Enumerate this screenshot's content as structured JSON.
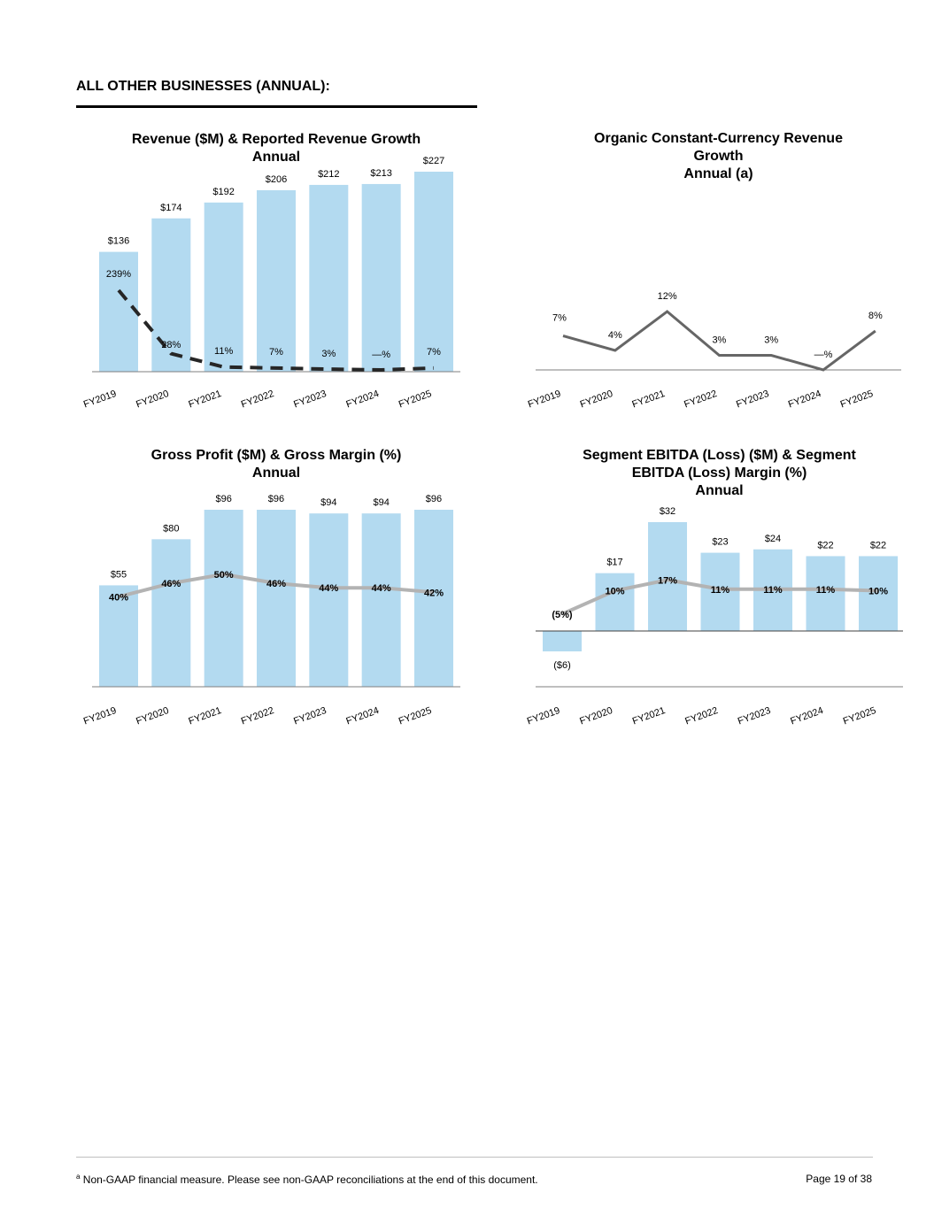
{
  "section_title": "ALL OTHER BUSINESSES (ANNUAL):",
  "colors": {
    "bar": "#b3daf0",
    "line_dark": "#666666",
    "line_light": "#b3b3b3",
    "dashed": "#262626",
    "axis": "#7f7f7f"
  },
  "chart_data": [
    {
      "id": "revenue",
      "type": "bar",
      "title": [
        "Revenue ($M) & Reported Revenue Growth",
        "Annual"
      ],
      "categories": [
        "FY2019",
        "FY2020",
        "FY2021",
        "FY2022",
        "FY2023",
        "FY2024",
        "FY2025"
      ],
      "ylim": [
        0,
        240
      ],
      "series": [
        {
          "values": [
            136,
            174,
            192,
            206,
            212,
            213,
            227
          ],
          "labels": [
            "$136",
            "$174",
            "$192",
            "$206",
            "$212",
            "$213",
            "$227"
          ]
        }
      ],
      "overlay": {
        "style": "dashed",
        "values": [
          239,
          28,
          11,
          7,
          3,
          0,
          7
        ],
        "labels": [
          "239%",
          "28%",
          "11%",
          "7%",
          "3%",
          "—%",
          "7%"
        ],
        "ylim": [
          0,
          300
        ]
      }
    },
    {
      "id": "organic",
      "type": "line",
      "title": [
        "Organic Constant-Currency Revenue",
        "Growth",
        "Annual (a)"
      ],
      "categories": [
        "FY2019",
        "FY2020",
        "FY2021",
        "FY2022",
        "FY2023",
        "FY2024",
        "FY2025"
      ],
      "ylim": [
        0,
        16
      ],
      "series": [
        {
          "values": [
            7,
            4,
            12,
            3,
            3,
            0,
            8
          ],
          "labels": [
            "7%",
            "4%",
            "12%",
            "3%",
            "3%",
            "—%",
            "8%"
          ]
        }
      ]
    },
    {
      "id": "gross_profit",
      "type": "bar",
      "title": [
        "Gross Profit ($M) & Gross Margin (%)",
        "Annual"
      ],
      "categories": [
        "FY2019",
        "FY2020",
        "FY2021",
        "FY2022",
        "FY2023",
        "FY2024",
        "FY2025"
      ],
      "ylim": [
        0,
        100
      ],
      "series": [
        {
          "values": [
            55,
            80,
            96,
            96,
            94,
            94,
            96
          ],
          "labels": [
            "$55",
            "$80",
            "$96",
            "$96",
            "$94",
            "$94",
            "$96"
          ]
        }
      ],
      "overlay": {
        "style": "solid-light",
        "values": [
          40,
          46,
          50,
          46,
          44,
          44,
          42
        ],
        "labels": [
          "40%",
          "46%",
          "50%",
          "46%",
          "44%",
          "44%",
          "42%"
        ],
        "ylim": [
          0,
          85
        ]
      }
    },
    {
      "id": "ebitda",
      "type": "bar",
      "title": [
        "Segment EBITDA (Loss) ($M) & Segment",
        "EBITDA (Loss) Margin (%)",
        "Annual"
      ],
      "categories": [
        "FY2019",
        "FY2020",
        "FY2021",
        "FY2022",
        "FY2023",
        "FY2024",
        "FY2025"
      ],
      "ylim": [
        -16,
        32
      ],
      "series": [
        {
          "values": [
            -6,
            17,
            32,
            23,
            24,
            22,
            22
          ],
          "labels": [
            "($6)",
            "$17",
            "$32",
            "$23",
            "$24",
            "$22",
            "$22"
          ]
        }
      ],
      "overlay": {
        "style": "solid-light",
        "values": [
          -5,
          10,
          17,
          11,
          11,
          11,
          10
        ],
        "labels": [
          "(5%)",
          "10%",
          "17%",
          "11%",
          "11%",
          "11%",
          "10%"
        ],
        "ylim": [
          -16,
          60
        ]
      }
    }
  ],
  "footer": {
    "footnote_marker": "a",
    "footnote": " Non-GAAP financial measure. Please see non-GAAP reconciliations at the end of this document.",
    "page": "Page 19 of 38"
  }
}
